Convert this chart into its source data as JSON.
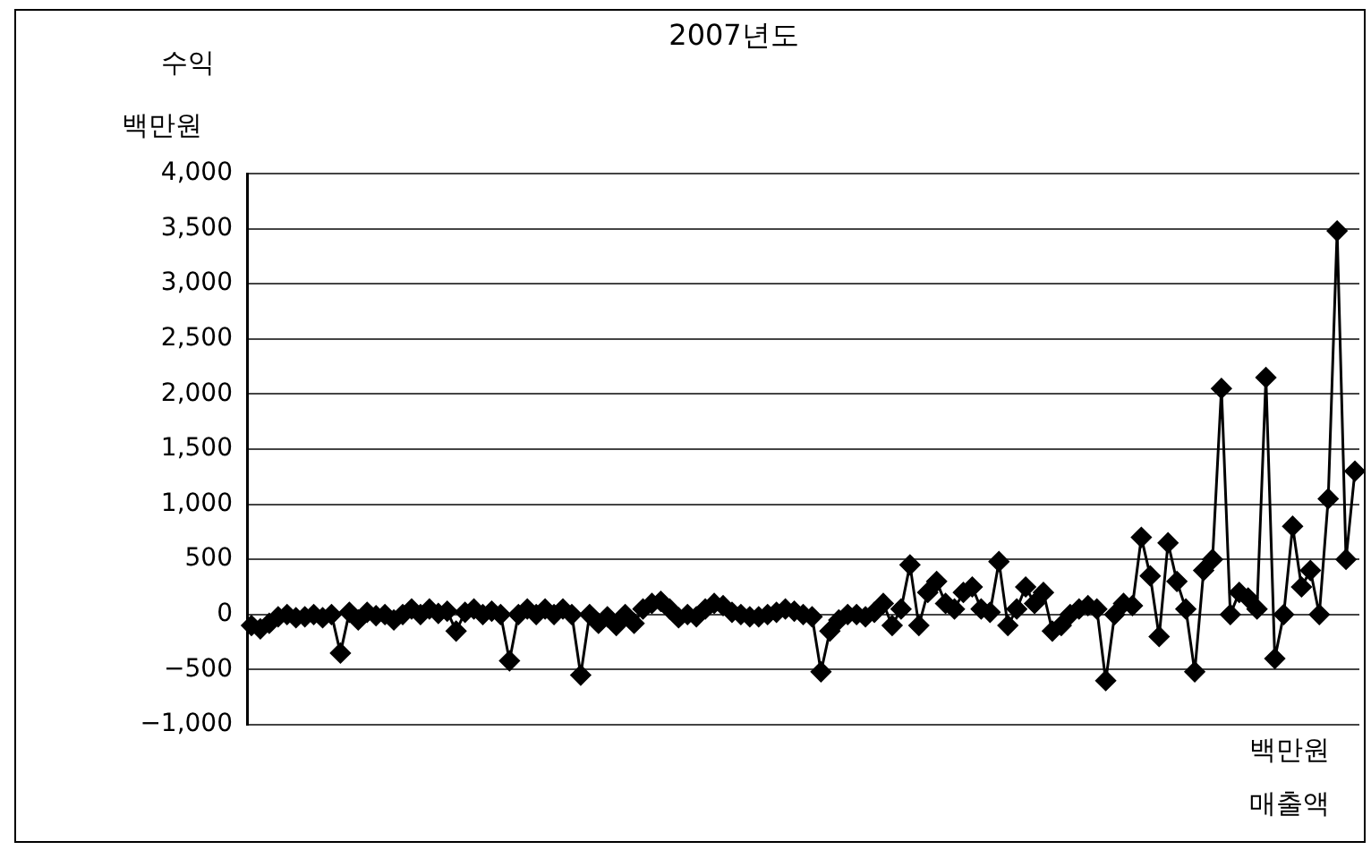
{
  "chart_data": {
    "type": "line",
    "title": "2007년도",
    "ylabel": "수익",
    "xlabel": "매출액",
    "annotations": [
      "백만원",
      "백만원"
    ],
    "categories": [
      null,
      null,
      null,
      null,
      null,
      null,
      null,
      null,
      null,
      null,
      null,
      null,
      null,
      null,
      null,
      null,
      null,
      null,
      null,
      null,
      null,
      null,
      null,
      null,
      null,
      null,
      null,
      null,
      null,
      null,
      null,
      null,
      null,
      null,
      null,
      null,
      null,
      null,
      null,
      null,
      null,
      null,
      null,
      null,
      null,
      null,
      null,
      null,
      null,
      null,
      null,
      null,
      null,
      null,
      null,
      null,
      null,
      null,
      null,
      null,
      null,
      null,
      null,
      null,
      null,
      null,
      null,
      null,
      null,
      null,
      null,
      null,
      null,
      null,
      null,
      null,
      null,
      null,
      null,
      null,
      null,
      null,
      null,
      null,
      null,
      null,
      null,
      null,
      null,
      null,
      null,
      null,
      null,
      null,
      null,
      null,
      null,
      null,
      null,
      null,
      null,
      null,
      null,
      null,
      null,
      null,
      null,
      null,
      null,
      null,
      null,
      null,
      null,
      null,
      null,
      null,
      null,
      null,
      null,
      null,
      null,
      null,
      null,
      null,
      null
    ],
    "series": [
      {
        "color": "#000000",
        "values": [
          -100,
          -130,
          -80,
          -20,
          0,
          -30,
          -20,
          0,
          -30,
          0,
          -350,
          20,
          -50,
          20,
          -10,
          0,
          -50,
          0,
          50,
          0,
          50,
          10,
          30,
          -150,
          20,
          50,
          0,
          30,
          0,
          -420,
          0,
          50,
          0,
          50,
          0,
          50,
          0,
          -550,
          0,
          -80,
          -20,
          -100,
          0,
          -80,
          50,
          100,
          120,
          50,
          -30,
          0,
          -20,
          50,
          100,
          80,
          20,
          0,
          -20,
          -20,
          0,
          20,
          50,
          30,
          0,
          -20,
          -520,
          -150,
          -50,
          0,
          0,
          -20,
          20,
          100,
          -100,
          50,
          450,
          -100,
          200,
          300,
          100,
          50,
          200,
          250,
          50,
          20,
          480,
          -100,
          50,
          250,
          100,
          200,
          -150,
          -100,
          0,
          50,
          80,
          50,
          -600,
          0,
          100,
          80,
          700,
          350,
          -200,
          650,
          300,
          50,
          -520,
          400,
          500,
          2050,
          0,
          200,
          150,
          50,
          2150,
          -400,
          0,
          800,
          250,
          400,
          0,
          1050,
          3480,
          500,
          1300
        ]
      }
    ],
    "ylim": [
      -1000,
      4000
    ],
    "yticks": [
      {
        "value": -1000,
        "label": "−1,000"
      },
      {
        "value": -500,
        "label": "−500"
      },
      {
        "value": 0,
        "label": "0"
      },
      {
        "value": 500,
        "label": "500"
      },
      {
        "value": 1000,
        "label": "1,000"
      },
      {
        "value": 1500,
        "label": "1,500"
      },
      {
        "value": 2000,
        "label": "2,000"
      },
      {
        "value": 2500,
        "label": "2,500"
      },
      {
        "value": 3000,
        "label": "3,000"
      },
      {
        "value": 3500,
        "label": "3,500"
      },
      {
        "value": 4000,
        "label": "4,000"
      }
    ],
    "grid": "y",
    "marker": "diamond",
    "tick_labels": "y"
  }
}
